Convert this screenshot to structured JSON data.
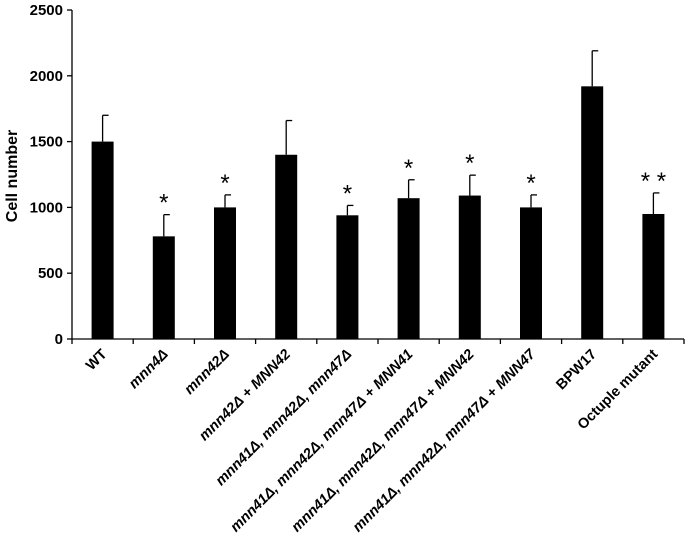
{
  "chart_data": {
    "type": "bar",
    "ylabel": "Cell number",
    "xlabel": "",
    "ylim": [
      0,
      2500
    ],
    "yticks": [
      0,
      500,
      1000,
      1500,
      2000,
      2500
    ],
    "grid": false,
    "categories": [
      {
        "segments": [
          {
            "t": "WT",
            "i": false
          }
        ]
      },
      {
        "segments": [
          {
            "t": "mnn4Δ",
            "i": true
          }
        ]
      },
      {
        "segments": [
          {
            "t": "mnn42Δ",
            "i": true
          }
        ]
      },
      {
        "segments": [
          {
            "t": "mnn42Δ",
            "i": true
          },
          {
            "t": " + ",
            "i": false
          },
          {
            "t": "MNN42",
            "i": true
          }
        ]
      },
      {
        "segments": [
          {
            "t": "mnn41Δ, mnn42Δ, mnn47Δ",
            "i": true
          }
        ]
      },
      {
        "segments": [
          {
            "t": "mnn41Δ, mnn42Δ, mnn47Δ",
            "i": true
          },
          {
            "t": " + ",
            "i": false
          },
          {
            "t": "MNN41",
            "i": true
          }
        ]
      },
      {
        "segments": [
          {
            "t": "mnn41Δ, mnn42Δ, mnn47Δ",
            "i": true
          },
          {
            "t": " + ",
            "i": false
          },
          {
            "t": "MNN42",
            "i": true
          }
        ]
      },
      {
        "segments": [
          {
            "t": "mnn41Δ, mnn42Δ, mnn47Δ",
            "i": true
          },
          {
            "t": " + ",
            "i": false
          },
          {
            "t": "MNN47",
            "i": true
          }
        ]
      },
      {
        "segments": [
          {
            "t": "BPW17",
            "i": false
          }
        ]
      },
      {
        "segments": [
          {
            "t": "Octuple mutant",
            "i": false
          }
        ]
      }
    ],
    "series": [
      {
        "values": [
          1500,
          780,
          1000,
          1400,
          940,
          1070,
          1090,
          1000,
          1920,
          950
        ],
        "errors": [
          200,
          165,
          95,
          260,
          75,
          140,
          155,
          95,
          270,
          160
        ],
        "significance": [
          "",
          "*",
          "*",
          "",
          "*",
          "*",
          "*",
          "*",
          "",
          "* *"
        ]
      }
    ]
  }
}
